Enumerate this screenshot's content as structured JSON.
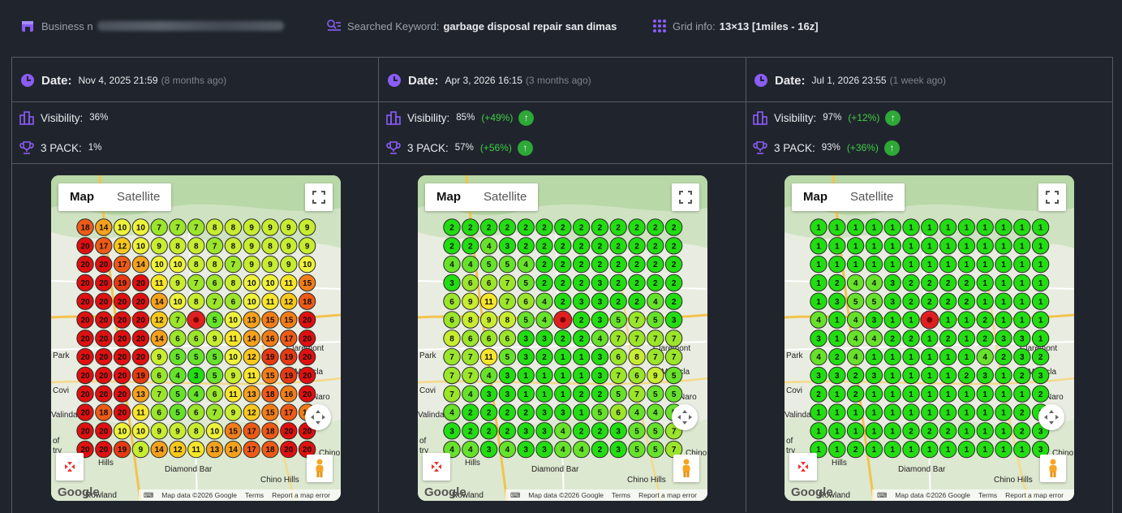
{
  "header": {
    "business_label": "Business n",
    "keyword_label": "Searched Keyword:",
    "keyword_value": "garbage disposal repair san dimas",
    "grid_label": "Grid info:",
    "grid_value": "13×13 [1miles - 16z]"
  },
  "colors": {
    "background": "#20252d",
    "accent": "#8b5cf6",
    "divider": "#555b64",
    "positive": "#3fcf45",
    "rank_1_3": "#22dd11",
    "rank_20": "#e01010"
  },
  "labels": {
    "date": "Date:",
    "visibility": "Visibility:",
    "pack": "3 PACK:"
  },
  "map_ui": {
    "tab_map": "Map",
    "tab_satellite": "Satellite",
    "google": "Google",
    "map_data": "Map data ©2026 Google",
    "terms": "Terms",
    "report": "Report a map error",
    "places": [
      "Park",
      "Covi",
      "Valinda",
      "of",
      "try",
      "Montcla",
      "Naro",
      "Chino",
      "Chino Hills",
      "Diamond Bar",
      "Hills",
      "Claremont",
      "Rowland"
    ]
  },
  "columns": [
    {
      "date": "Nov 4, 2025 21:59",
      "ago": "(8 months ago)",
      "visibility": "36%",
      "visibility_delta": "",
      "pack": "1%",
      "pack_delta": "",
      "grid": [
        [
          18,
          14,
          10,
          10,
          7,
          7,
          7,
          8,
          8,
          9,
          9,
          9,
          9
        ],
        [
          20,
          17,
          12,
          10,
          9,
          8,
          8,
          7,
          8,
          9,
          8,
          9,
          9
        ],
        [
          20,
          20,
          17,
          14,
          10,
          10,
          8,
          8,
          7,
          9,
          9,
          9,
          10
        ],
        [
          20,
          20,
          19,
          20,
          11,
          9,
          7,
          6,
          8,
          10,
          10,
          11,
          15
        ],
        [
          20,
          20,
          20,
          20,
          14,
          10,
          8,
          7,
          6,
          10,
          11,
          12,
          18
        ],
        [
          20,
          20,
          20,
          20,
          12,
          7,
          0,
          5,
          10,
          13,
          15,
          15,
          20
        ],
        [
          20,
          20,
          20,
          20,
          14,
          6,
          6,
          9,
          11,
          14,
          16,
          17,
          20
        ],
        [
          20,
          20,
          20,
          20,
          9,
          5,
          5,
          5,
          10,
          12,
          19,
          19,
          20
        ],
        [
          20,
          20,
          20,
          19,
          6,
          4,
          3,
          5,
          9,
          11,
          15,
          19,
          20
        ],
        [
          20,
          20,
          20,
          13,
          7,
          5,
          4,
          6,
          11,
          13,
          18,
          16,
          20
        ],
        [
          20,
          18,
          20,
          11,
          6,
          5,
          6,
          7,
          9,
          12,
          15,
          17,
          15
        ],
        [
          20,
          20,
          10,
          10,
          9,
          9,
          8,
          10,
          15,
          17,
          18,
          20,
          20
        ],
        [
          20,
          20,
          19,
          9,
          14,
          12,
          11,
          13,
          14,
          17,
          18,
          20,
          20
        ]
      ]
    },
    {
      "date": "Apr 3, 2026 16:15",
      "ago": "(3 months ago)",
      "visibility": "85%",
      "visibility_delta": "(+49%)",
      "pack": "57%",
      "pack_delta": "(+56%)",
      "grid": [
        [
          2,
          2,
          2,
          2,
          2,
          2,
          2,
          2,
          2,
          2,
          2,
          2,
          2
        ],
        [
          2,
          2,
          4,
          3,
          2,
          2,
          2,
          2,
          2,
          2,
          2,
          2,
          2
        ],
        [
          4,
          4,
          5,
          5,
          4,
          2,
          2,
          2,
          2,
          2,
          2,
          2,
          2
        ],
        [
          3,
          6,
          6,
          7,
          5,
          2,
          2,
          2,
          3,
          2,
          2,
          2,
          2
        ],
        [
          6,
          9,
          11,
          7,
          6,
          4,
          2,
          3,
          3,
          2,
          2,
          4,
          2
        ],
        [
          6,
          8,
          9,
          8,
          5,
          4,
          0,
          2,
          3,
          5,
          7,
          5,
          3
        ],
        [
          8,
          6,
          6,
          6,
          3,
          3,
          2,
          2,
          4,
          7,
          7,
          7,
          7
        ],
        [
          7,
          7,
          11,
          5,
          3,
          2,
          1,
          1,
          3,
          6,
          8,
          7,
          7
        ],
        [
          7,
          7,
          4,
          3,
          1,
          1,
          1,
          1,
          3,
          7,
          6,
          9,
          5
        ],
        [
          7,
          4,
          3,
          3,
          1,
          1,
          1,
          2,
          2,
          5,
          7,
          5,
          5
        ],
        [
          4,
          2,
          2,
          2,
          2,
          3,
          3,
          1,
          5,
          6,
          4,
          4,
          5
        ],
        [
          3,
          2,
          2,
          2,
          3,
          3,
          4,
          2,
          2,
          3,
          5,
          5,
          7
        ],
        [
          4,
          4,
          3,
          4,
          3,
          3,
          4,
          4,
          2,
          3,
          5,
          5,
          7
        ]
      ]
    },
    {
      "date": "Jul 1, 2026 23:55",
      "ago": "(1 week ago)",
      "visibility": "97%",
      "visibility_delta": "(+12%)",
      "pack": "93%",
      "pack_delta": "(+36%)",
      "grid": [
        [
          1,
          1,
          1,
          1,
          1,
          1,
          1,
          1,
          1,
          1,
          1,
          1,
          1
        ],
        [
          1,
          1,
          1,
          1,
          1,
          1,
          1,
          1,
          1,
          1,
          1,
          1,
          1
        ],
        [
          1,
          1,
          1,
          1,
          1,
          1,
          1,
          1,
          1,
          1,
          1,
          1,
          1
        ],
        [
          1,
          2,
          4,
          4,
          3,
          2,
          2,
          2,
          2,
          1,
          1,
          1,
          1
        ],
        [
          1,
          3,
          5,
          5,
          3,
          2,
          2,
          2,
          2,
          1,
          1,
          1,
          1
        ],
        [
          4,
          1,
          4,
          3,
          1,
          1,
          0,
          1,
          1,
          2,
          1,
          1,
          1
        ],
        [
          3,
          1,
          4,
          4,
          2,
          2,
          1,
          2,
          1,
          2,
          3,
          3,
          1
        ],
        [
          4,
          2,
          4,
          1,
          1,
          1,
          1,
          1,
          1,
          4,
          2,
          3,
          2
        ],
        [
          3,
          3,
          2,
          3,
          1,
          1,
          1,
          1,
          2,
          3,
          1,
          2,
          3
        ],
        [
          2,
          1,
          2,
          1,
          1,
          1,
          1,
          1,
          1,
          1,
          1,
          1,
          2
        ],
        [
          1,
          1,
          1,
          1,
          1,
          1,
          1,
          1,
          1,
          1,
          1,
          2,
          1
        ],
        [
          1,
          1,
          1,
          1,
          1,
          2,
          2,
          2,
          1,
          1,
          1,
          2,
          3
        ],
        [
          1,
          1,
          2,
          1,
          1,
          1,
          1,
          1,
          1,
          1,
          1,
          1,
          3
        ]
      ]
    }
  ]
}
